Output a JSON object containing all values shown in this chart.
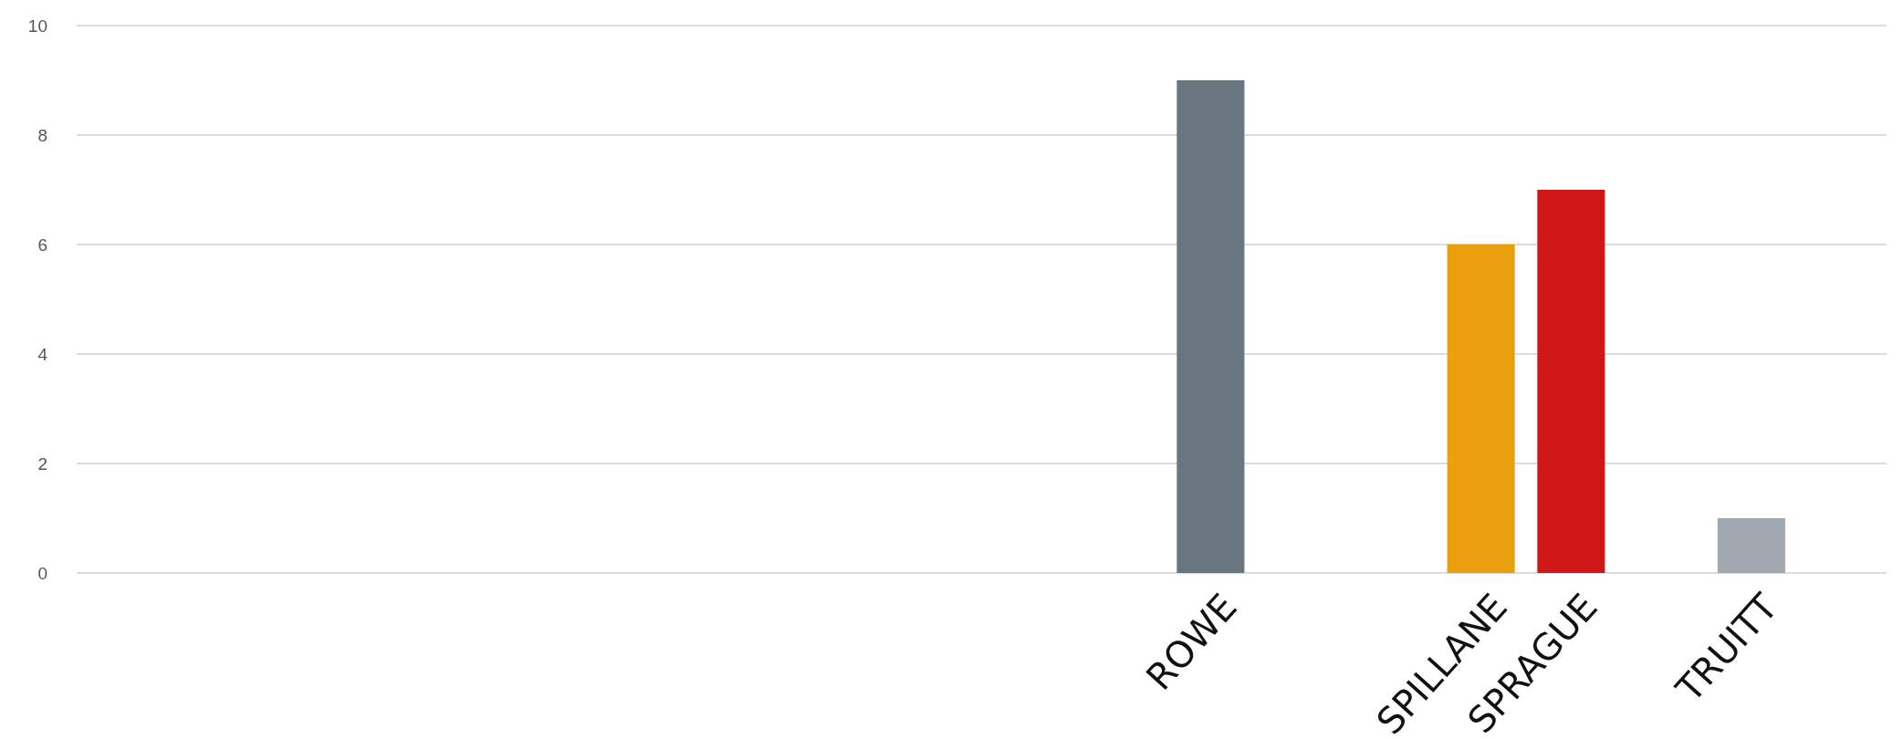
{
  "chart_data": {
    "type": "bar",
    "categories": [
      null,
      null,
      null,
      null,
      null,
      null,
      null,
      null,
      null,
      null,
      null,
      null,
      "ROWE",
      null,
      null,
      "SPILLANE",
      "SPRAGUE",
      null,
      "TRUITT",
      null
    ],
    "values": [
      null,
      null,
      null,
      null,
      null,
      null,
      null,
      null,
      null,
      null,
      null,
      null,
      9,
      null,
      null,
      6,
      7,
      null,
      1,
      null
    ],
    "colors": [
      null,
      null,
      null,
      null,
      null,
      null,
      null,
      null,
      null,
      null,
      null,
      null,
      "#68767f",
      null,
      null,
      "#e9a00c",
      "#d01717",
      null,
      "#a0a8b0",
      null
    ],
    "ylim": [
      0,
      10
    ],
    "yticks": [
      0,
      2,
      4,
      6,
      8,
      10
    ],
    "grid": "y"
  }
}
